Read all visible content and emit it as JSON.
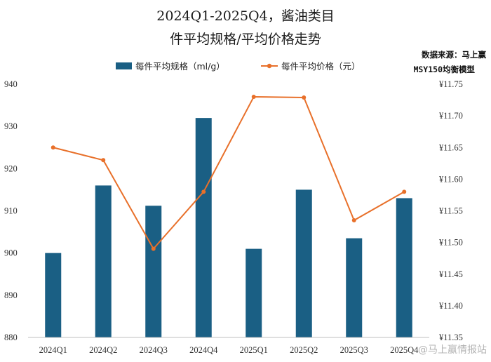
{
  "chart_data": {
    "type": "bar+line",
    "title_line1": "2024Q1-2025Q4，酱油类目",
    "title_line2": "件平均规格/平均价格走势",
    "categories": [
      "2024Q1",
      "2024Q2",
      "2024Q3",
      "2024Q4",
      "2025Q1",
      "2025Q2",
      "2025Q3",
      "2025Q4"
    ],
    "series": [
      {
        "name": "每件平均规格（ml/g）",
        "type": "bar",
        "axis": "left",
        "color": "#1a5f84",
        "values": [
          900,
          916,
          911.2,
          932,
          901,
          915,
          903.5,
          913
        ]
      },
      {
        "name": "每件平均价格（元）",
        "type": "line",
        "axis": "right",
        "color": "#e8702a",
        "values": [
          11.65,
          11.63,
          11.49,
          11.58,
          11.73,
          11.729,
          11.535,
          11.58
        ]
      }
    ],
    "left_axis": {
      "ylim": [
        880,
        940
      ],
      "ticks": [
        880,
        890,
        900,
        910,
        920,
        930,
        940
      ],
      "tick_labels": [
        "880",
        "890",
        "900",
        "910",
        "920",
        "930",
        "940"
      ]
    },
    "right_axis": {
      "ylim": [
        11.35,
        11.75
      ],
      "ticks": [
        11.35,
        11.4,
        11.45,
        11.5,
        11.55,
        11.6,
        11.65,
        11.7,
        11.75
      ],
      "tick_labels": [
        "¥11.35",
        "¥11.40",
        "¥11.45",
        "¥11.50",
        "¥11.55",
        "¥11.60",
        "¥11.65",
        "¥11.70",
        "¥11.75"
      ]
    },
    "source_line1": "数据来源：马上赢",
    "source_line2": "MSY150均衡模型",
    "watermark": "@马上赢情报站",
    "legend_position": "top-center",
    "grid": false
  }
}
